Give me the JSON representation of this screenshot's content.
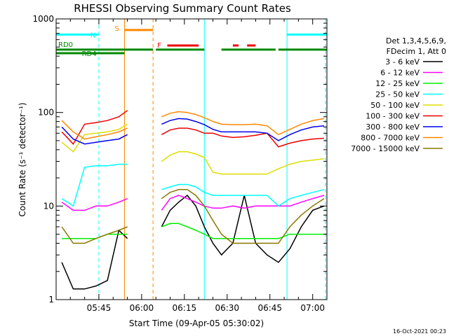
{
  "chart_data": {
    "type": "line",
    "title": "RHESSI Observing Summary Count Rates",
    "xlabel": "Start Time (09-Apr-05 05:30:02)",
    "ylabel": "Count Rate (s⁻¹ detector⁻¹)",
    "x_unit": "minutes after 05:30:02",
    "xlim": [
      0,
      95
    ],
    "ylim": [
      1,
      1000
    ],
    "y_scale": "log",
    "x_ticks": [
      {
        "x": 15,
        "label": "05:45"
      },
      {
        "x": 30,
        "label": "06:00"
      },
      {
        "x": 45,
        "label": "06:15"
      },
      {
        "x": 60,
        "label": "06:30"
      },
      {
        "x": 75,
        "label": "06:45"
      },
      {
        "x": 90,
        "label": "07:00"
      }
    ],
    "y_ticks": [
      {
        "y": 1,
        "label": "1"
      },
      {
        "y": 10,
        "label": "10"
      },
      {
        "y": 100,
        "label": "100"
      },
      {
        "y": 1000,
        "label": "1000"
      }
    ],
    "legend": {
      "header": [
        "Det 1,3,4,5,6,9,",
        "FDecim 1, Att 0"
      ],
      "position": "right"
    },
    "series": [
      {
        "name": "3 - 6 keV",
        "color": "#000000",
        "x": [
          2,
          6,
          10,
          14,
          18,
          22,
          25,
          37,
          40,
          43,
          46,
          49,
          52,
          55,
          58,
          62,
          66,
          70,
          74,
          78,
          82,
          86,
          90,
          94
        ],
        "y": [
          2.5,
          1.3,
          1.3,
          1.4,
          1.6,
          5.5,
          4.5,
          6,
          9,
          11,
          13,
          10,
          6,
          4,
          3,
          4,
          13,
          4,
          3,
          2.5,
          3.5,
          6,
          9,
          10
        ]
      },
      {
        "name": "6 - 12 keV",
        "color": "#ff00ff",
        "x": [
          2,
          6,
          10,
          14,
          18,
          22,
          25,
          37,
          40,
          43,
          46,
          49,
          52,
          55,
          58,
          62,
          66,
          70,
          74,
          78,
          82,
          86,
          90,
          94
        ],
        "y": [
          11,
          9,
          9,
          10,
          10,
          11,
          12,
          9,
          12,
          13,
          12,
          11,
          10,
          9.5,
          9.5,
          10,
          9.5,
          10,
          10,
          10,
          10,
          11,
          12,
          13
        ]
      },
      {
        "name": "12 - 25 keV",
        "color": "#00ee00",
        "x": [
          2,
          6,
          10,
          14,
          18,
          22,
          25,
          37,
          40,
          43,
          46,
          49,
          52,
          55,
          58,
          62,
          66,
          70,
          74,
          78,
          82,
          86,
          90,
          94
        ],
        "y": [
          4.5,
          4.5,
          4.5,
          4.5,
          5,
          5,
          5,
          6,
          6.5,
          6.5,
          6,
          5.5,
          5,
          4.5,
          4.5,
          4.5,
          4.5,
          4.5,
          4.5,
          4.5,
          5,
          5,
          5,
          5
        ]
      },
      {
        "name": "25 - 50 keV",
        "color": "#00ffff",
        "x": [
          2,
          6,
          10,
          14,
          18,
          22,
          25,
          37,
          40,
          43,
          46,
          49,
          52,
          55,
          58,
          62,
          66,
          70,
          74,
          78,
          82,
          86,
          90,
          94
        ],
        "y": [
          12,
          10,
          26,
          27,
          27,
          28,
          28,
          15,
          16,
          17,
          17,
          16,
          14,
          13,
          13,
          13,
          13,
          13,
          13,
          10,
          12,
          13,
          14,
          15
        ]
      },
      {
        "name": "50 - 100 keV",
        "color": "#dddd00",
        "x": [
          2,
          6,
          10,
          14,
          18,
          22,
          25,
          37,
          40,
          43,
          46,
          49,
          52,
          55,
          58,
          62,
          66,
          70,
          74,
          78,
          82,
          86,
          90,
          94
        ],
        "y": [
          48,
          38,
          58,
          60,
          62,
          66,
          75,
          30,
          35,
          38,
          38,
          36,
          33,
          23,
          22,
          22,
          22,
          22,
          22,
          25,
          28,
          30,
          31,
          32
        ]
      },
      {
        "name": "100 - 300 keV",
        "color": "#ee0000",
        "x": [
          2,
          6,
          10,
          14,
          18,
          22,
          25,
          37,
          40,
          43,
          46,
          49,
          52,
          55,
          58,
          62,
          66,
          70,
          74,
          78,
          82,
          86,
          90,
          94
        ],
        "y": [
          62,
          46,
          75,
          78,
          82,
          90,
          105,
          58,
          65,
          68,
          68,
          65,
          60,
          60,
          56,
          54,
          55,
          57,
          60,
          43,
          47,
          50,
          52,
          53
        ]
      },
      {
        "name": "300 - 800 keV",
        "color": "#0000ee",
        "x": [
          2,
          6,
          10,
          14,
          18,
          22,
          25,
          37,
          40,
          43,
          46,
          49,
          52,
          55,
          58,
          62,
          66,
          70,
          74,
          78,
          82,
          86,
          90,
          94
        ],
        "y": [
          70,
          52,
          46,
          48,
          50,
          52,
          58,
          75,
          82,
          86,
          85,
          80,
          74,
          66,
          62,
          62,
          62,
          62,
          60,
          50,
          58,
          65,
          70,
          72
        ]
      },
      {
        "name": "800 - 7000 keV",
        "color": "#ff8800",
        "x": [
          2,
          6,
          10,
          14,
          18,
          22,
          25,
          37,
          40,
          43,
          46,
          49,
          52,
          55,
          58,
          62,
          66,
          70,
          74,
          78,
          82,
          86,
          90,
          94
        ],
        "y": [
          82,
          62,
          52,
          55,
          58,
          62,
          68,
          90,
          98,
          102,
          100,
          95,
          88,
          80,
          75,
          74,
          74,
          75,
          72,
          58,
          66,
          75,
          82,
          86
        ]
      },
      {
        "name": "7000 - 15000 keV",
        "color": "#887700",
        "x": [
          2,
          6,
          10,
          14,
          18,
          22,
          25,
          37,
          40,
          43,
          46,
          49,
          52,
          55,
          58,
          62,
          66,
          70,
          74,
          78,
          82,
          86,
          90,
          94
        ],
        "y": [
          6,
          4,
          4,
          4.5,
          5,
          5.5,
          6,
          12,
          14,
          15,
          15,
          13,
          10,
          7,
          5,
          4,
          4,
          4,
          4,
          4,
          6,
          8,
          10,
          12
        ]
      }
    ],
    "flags": [
      {
        "label": "N",
        "color": "#00ffff",
        "bars": [
          [
            0,
            15
          ],
          [
            81,
            95
          ]
        ],
        "level": 680
      },
      {
        "label": "S",
        "color": "#ff8800",
        "bars": [
          [
            24,
            34
          ]
        ],
        "level": 760
      },
      {
        "label": "F",
        "color": "#ee0000",
        "bars": [
          [
            39,
            50
          ],
          [
            62,
            64
          ],
          [
            67,
            70
          ]
        ],
        "level": 520
      },
      {
        "label": "RD0",
        "color": "#008800",
        "bars": [
          [
            0,
            34
          ],
          [
            35,
            52
          ],
          [
            58,
            77
          ],
          [
            78,
            95
          ]
        ],
        "level": 470
      },
      {
        "label": "RD4",
        "color": "#008800",
        "bars": [
          [
            0,
            24
          ]
        ],
        "level": 430
      }
    ],
    "vlines": [
      {
        "x": 15,
        "color": "#00ffff",
        "style": "dashed"
      },
      {
        "x": 24,
        "color": "#ff8800",
        "style": "solid"
      },
      {
        "x": 34,
        "color": "#ff8800",
        "style": "dashed"
      },
      {
        "x": 52,
        "color": "#00ffff",
        "style": "solid"
      },
      {
        "x": 81,
        "color": "#00ffff",
        "style": "solid"
      },
      {
        "x": 94.5,
        "color": "#00ffff",
        "style": "dashed"
      }
    ]
  },
  "timestamp": "16-Oct-2021 00:23"
}
